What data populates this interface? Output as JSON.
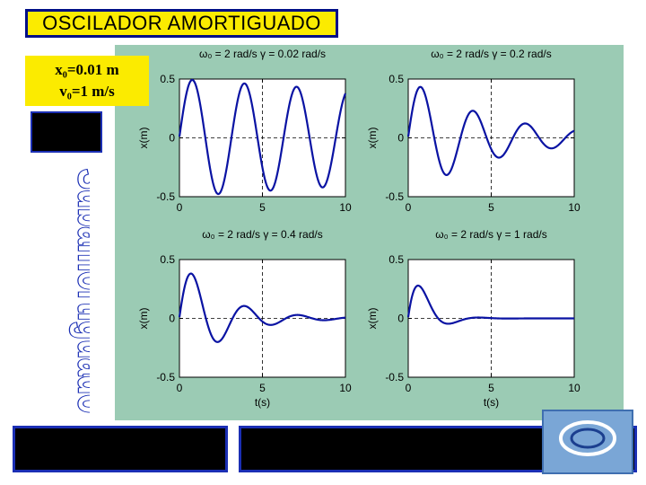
{
  "title": "OSCILADOR AMORTIGUADO",
  "initial_conditions": {
    "x0": "x₀=0.01 m",
    "v0": "v₀=1 m/s"
  },
  "side_word": "Subamortiguado",
  "colors": {
    "title_bg": "#fbeb00",
    "title_border": "#000f87",
    "panel_bg": "#9bcbb4",
    "curve": "#0a13a3",
    "bar_border": "#1b2fb4"
  },
  "chart_data": [
    {
      "type": "line",
      "title": "ω₀ = 2 rad/s γ = 0.02 rad/s",
      "omega0": 2,
      "gamma": 0.02,
      "xlabel": "",
      "ylabel": "x(m)",
      "xlim": [
        0,
        10
      ],
      "ylim": [
        -0.5,
        0.5
      ],
      "xticks": [
        "0",
        "5",
        "10"
      ],
      "yticks": [
        "0.5",
        "0",
        "-0.5"
      ],
      "grid": true,
      "x0": 0.01,
      "v0": 1
    },
    {
      "type": "line",
      "title": "ω₀ = 2 rad/s γ = 0.2 rad/s",
      "omega0": 2,
      "gamma": 0.2,
      "xlabel": "",
      "ylabel": "x(m)",
      "xlim": [
        0,
        10
      ],
      "ylim": [
        -0.5,
        0.5
      ],
      "xticks": [
        "0",
        "5",
        "10"
      ],
      "yticks": [
        "0.5",
        "0",
        "-0.5"
      ],
      "grid": true,
      "x0": 0.01,
      "v0": 1
    },
    {
      "type": "line",
      "title": "ω₀ = 2 rad/s γ = 0.4 rad/s",
      "omega0": 2,
      "gamma": 0.4,
      "xlabel": "t(s)",
      "ylabel": "x(m)",
      "xlim": [
        0,
        10
      ],
      "ylim": [
        -0.5,
        0.5
      ],
      "xticks": [
        "0",
        "5",
        "10"
      ],
      "yticks": [
        "0.5",
        "0",
        "-0.5"
      ],
      "grid": true,
      "x0": 0.01,
      "v0": 1
    },
    {
      "type": "line",
      "title": "ω₀ = 2 rad/s γ = 1 rad/s",
      "omega0": 2,
      "gamma": 1,
      "xlabel": "t(s)",
      "ylabel": "x(m)",
      "xlim": [
        0,
        10
      ],
      "ylim": [
        -0.5,
        0.5
      ],
      "xticks": [
        "0",
        "5",
        "10"
      ],
      "yticks": [
        "0.5",
        "0",
        "-0.5"
      ],
      "grid": true,
      "x0": 0.01,
      "v0": 1
    }
  ]
}
